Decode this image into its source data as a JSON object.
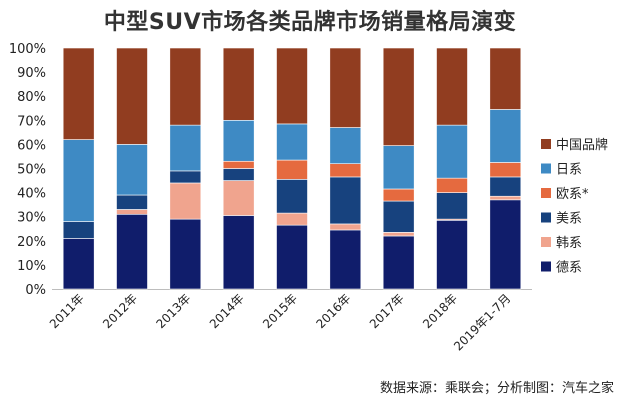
{
  "chart_data": {
    "type": "bar",
    "stacked": true,
    "title": "中型SUV市场各类品牌市场销量格局演变",
    "categories": [
      "2011年",
      "2012年",
      "2013年",
      "2014年",
      "2015年",
      "2016年",
      "2017年",
      "2018年",
      "2019年1-7月"
    ],
    "ylim": [
      0,
      100
    ],
    "yticks": [
      "0%",
      "10%",
      "20%",
      "30%",
      "40%",
      "50%",
      "60%",
      "70%",
      "80%",
      "90%",
      "100%"
    ],
    "legend_position": "right",
    "series": [
      {
        "name": "德系",
        "color": "#101d6b",
        "values": [
          21,
          31,
          29,
          30.5,
          26.5,
          24.5,
          22,
          28.5,
          37
        ]
      },
      {
        "name": "韩系",
        "color": "#f0a48e",
        "values": [
          0,
          2,
          15,
          14.5,
          5,
          2.5,
          1.5,
          0.5,
          1.5
        ]
      },
      {
        "name": "美系",
        "color": "#17427e",
        "values": [
          7,
          6,
          5,
          5,
          14,
          19.5,
          13,
          11,
          8
        ]
      },
      {
        "name": "欧系*",
        "color": "#e56a3f",
        "values": [
          0,
          0,
          0,
          3,
          8,
          5.5,
          5,
          6,
          6
        ]
      },
      {
        "name": "日系",
        "color": "#3e8ac4",
        "values": [
          34,
          21,
          19,
          17,
          15,
          15,
          18,
          22,
          22
        ]
      },
      {
        "name": "中国品牌",
        "color": "#913d20",
        "values": [
          38,
          40,
          32,
          30,
          31.5,
          33,
          40.5,
          32,
          25.5
        ]
      }
    ]
  },
  "source_text": "数据来源：乘联会；分析制图：汽车之家"
}
